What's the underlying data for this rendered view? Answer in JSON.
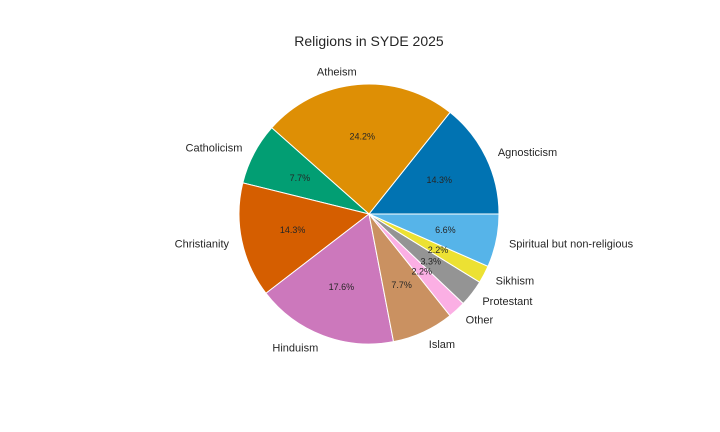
{
  "chart_data": {
    "type": "pie",
    "title": "Religions in SYDE 2025",
    "slices": [
      {
        "label": "Agnosticism",
        "value": 14.3,
        "pct_label": "14.3%",
        "color": "#0173b2"
      },
      {
        "label": "Atheism",
        "value": 24.2,
        "pct_label": "24.2%",
        "color": "#de8f05"
      },
      {
        "label": "Catholicism",
        "value": 7.7,
        "pct_label": "7.7%",
        "color": "#029e73"
      },
      {
        "label": "Christianity",
        "value": 14.3,
        "pct_label": "14.3%",
        "color": "#d55e00"
      },
      {
        "label": "Hinduism",
        "value": 17.6,
        "pct_label": "17.6%",
        "color": "#cc78bc"
      },
      {
        "label": "Islam",
        "value": 7.7,
        "pct_label": "7.7%",
        "color": "#ca9161"
      },
      {
        "label": "Other",
        "value": 2.2,
        "pct_label": "2.2%",
        "color": "#fbafe4"
      },
      {
        "label": "Protestant",
        "value": 3.3,
        "pct_label": "3.3%",
        "color": "#949494"
      },
      {
        "label": "Sikhism",
        "value": 2.2,
        "pct_label": "2.2%",
        "color": "#ece133"
      },
      {
        "label": "Spiritual but non-religious",
        "value": 6.6,
        "pct_label": "6.6%",
        "color": "#56b4e9"
      }
    ],
    "start_angle_deg": 0,
    "direction": "counterclockwise",
    "legend": "none"
  }
}
